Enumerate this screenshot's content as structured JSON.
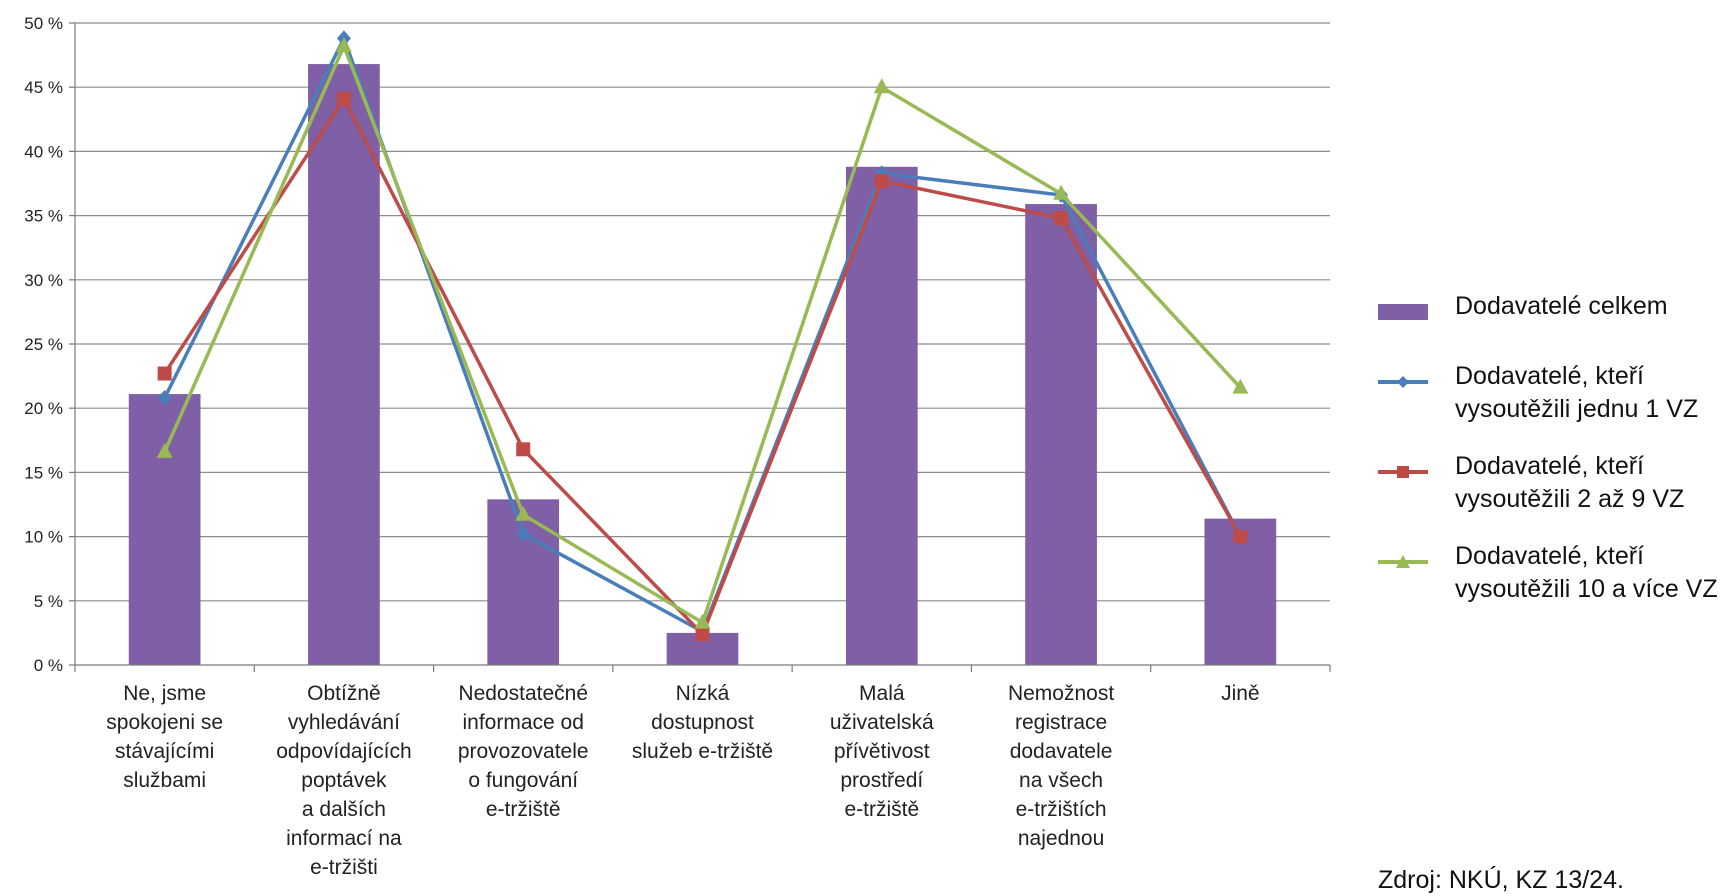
{
  "chart_data": {
    "type": "bar",
    "categories": [
      [
        "Ne, jsme",
        "spokojeni se",
        "stávajícími",
        "službami"
      ],
      [
        "Obtížně",
        "vyhledávání",
        "odpovídajících",
        "poptávek",
        "a dalších",
        "informací na",
        "e-tržišti"
      ],
      [
        "Nedostatečné",
        "informace od",
        "provozovatele",
        "o fungování",
        "e-tržiště"
      ],
      [
        "Nízká",
        "dostupnost",
        "služeb e-tržiště"
      ],
      [
        "Malá",
        "uživatelská",
        "přívětivost",
        "prostředí",
        "e-tržiště"
      ],
      [
        "Nemožnost",
        "registrace",
        "dodavatele",
        "na všech",
        "e-tržištích",
        "najednou"
      ],
      [
        "Jině"
      ]
    ],
    "ylim": [
      0,
      50
    ],
    "yticks": [
      "0 %",
      "5 %",
      "10 %",
      "15 %",
      "20 %",
      "25 %",
      "30 %",
      "35 %",
      "40 %",
      "45 %",
      "50 %"
    ],
    "grid": true,
    "legend_position": "right",
    "series": [
      {
        "name": "Dodavatelé celkem",
        "type": "bar",
        "color": "#7f5fa6",
        "values": [
          21.1,
          46.8,
          12.9,
          2.5,
          38.8,
          35.9,
          11.4
        ]
      },
      {
        "name": "Dodavatelé, kteří vysoutěžili jednu 1 VZ",
        "type": "line",
        "marker": "diamond",
        "color": "#4a7ebb",
        "values": [
          20.8,
          48.8,
          10.2,
          2.6,
          38.3,
          36.6,
          10.0
        ]
      },
      {
        "name": "Dodavatelé, kteří vysoutěžili 2 až 9 VZ",
        "type": "line",
        "marker": "square",
        "color": "#be4b48",
        "values": [
          22.7,
          44.1,
          16.8,
          2.4,
          37.7,
          34.8,
          10.0
        ]
      },
      {
        "name": "Dodavatelé, kteří vysoutěžili 10 a více VZ",
        "type": "line",
        "marker": "triangle",
        "color": "#98b954",
        "values": [
          16.6,
          48.2,
          11.7,
          3.3,
          45.0,
          36.7,
          21.6
        ]
      }
    ]
  },
  "legend": {
    "items": [
      {
        "label": "Dodavatelé celkem",
        "icon": "bar-swatch",
        "color": "#7f5fa6"
      },
      {
        "label": "Dodavatelé, kteří vysoutěžili jednu 1 VZ",
        "icon": "line-diamond",
        "color": "#4a7ebb"
      },
      {
        "label": "Dodavatelé, kteří vysoutěžili 2 až 9 VZ",
        "icon": "line-square",
        "color": "#be4b48"
      },
      {
        "label": "Dodavatelé, kteří vysoutěžili 10 a více VZ",
        "icon": "line-triangle",
        "color": "#98b954"
      }
    ]
  },
  "source": "Zdroj: NKÚ, KZ 13/24."
}
